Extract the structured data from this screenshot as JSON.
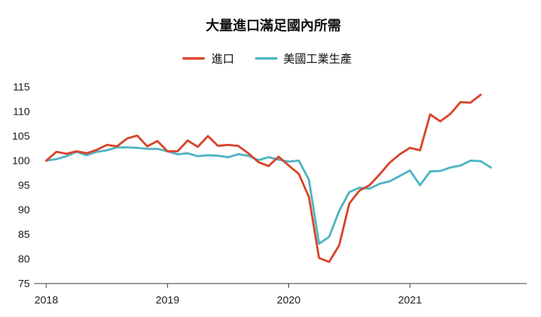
{
  "chart_data": {
    "type": "line",
    "title": "大量進口滿足國內所需",
    "xlabel": "",
    "ylabel": "",
    "x_ticks": [
      "2018",
      "2019",
      "2020",
      "2021"
    ],
    "x_range": [
      "2018-01",
      "2021-12"
    ],
    "ylim": [
      75,
      115
    ],
    "y_ticks": [
      "115",
      "110",
      "105",
      "100",
      "95",
      "90",
      "85",
      "80",
      "75"
    ],
    "grid": false,
    "legend_position": "top-center",
    "series": [
      {
        "name": "進口",
        "color": "#d9452b",
        "points": [
          {
            "x": "2018-01",
            "y": 100.0
          },
          {
            "x": "2018-02",
            "y": 101.8
          },
          {
            "x": "2018-03",
            "y": 101.4
          },
          {
            "x": "2018-04",
            "y": 101.9
          },
          {
            "x": "2018-05",
            "y": 101.5
          },
          {
            "x": "2018-06",
            "y": 102.2
          },
          {
            "x": "2018-07",
            "y": 103.2
          },
          {
            "x": "2018-08",
            "y": 102.9
          },
          {
            "x": "2018-09",
            "y": 104.5
          },
          {
            "x": "2018-10",
            "y": 105.1
          },
          {
            "x": "2018-11",
            "y": 102.9
          },
          {
            "x": "2018-12",
            "y": 104.0
          },
          {
            "x": "2019-01",
            "y": 101.9
          },
          {
            "x": "2019-02",
            "y": 101.9
          },
          {
            "x": "2019-03",
            "y": 104.1
          },
          {
            "x": "2019-04",
            "y": 102.8
          },
          {
            "x": "2019-05",
            "y": 105.0
          },
          {
            "x": "2019-06",
            "y": 103.0
          },
          {
            "x": "2019-07",
            "y": 103.2
          },
          {
            "x": "2019-08",
            "y": 103.0
          },
          {
            "x": "2019-09",
            "y": 101.5
          },
          {
            "x": "2019-10",
            "y": 99.7
          },
          {
            "x": "2019-11",
            "y": 98.9
          },
          {
            "x": "2019-12",
            "y": 100.8
          },
          {
            "x": "2020-01",
            "y": 99.0
          },
          {
            "x": "2020-02",
            "y": 97.3
          },
          {
            "x": "2020-03",
            "y": 92.6
          },
          {
            "x": "2020-04",
            "y": 80.2
          },
          {
            "x": "2020-05",
            "y": 79.4
          },
          {
            "x": "2020-06",
            "y": 82.8
          },
          {
            "x": "2020-07",
            "y": 91.3
          },
          {
            "x": "2020-08",
            "y": 93.9
          },
          {
            "x": "2020-09",
            "y": 95.0
          },
          {
            "x": "2020-10",
            "y": 97.2
          },
          {
            "x": "2020-11",
            "y": 99.6
          },
          {
            "x": "2020-12",
            "y": 101.3
          },
          {
            "x": "2021-01",
            "y": 102.6
          },
          {
            "x": "2021-02",
            "y": 102.1
          },
          {
            "x": "2021-03",
            "y": 109.4
          },
          {
            "x": "2021-04",
            "y": 108.0
          },
          {
            "x": "2021-05",
            "y": 109.5
          },
          {
            "x": "2021-06",
            "y": 111.9
          },
          {
            "x": "2021-07",
            "y": 111.8
          },
          {
            "x": "2021-08",
            "y": 113.4
          }
        ]
      },
      {
        "name": "美國工業生產",
        "color": "#4fb4c2",
        "points": [
          {
            "x": "2018-01",
            "y": 100.0
          },
          {
            "x": "2018-02",
            "y": 100.3
          },
          {
            "x": "2018-03",
            "y": 100.9
          },
          {
            "x": "2018-04",
            "y": 101.8
          },
          {
            "x": "2018-05",
            "y": 101.1
          },
          {
            "x": "2018-06",
            "y": 101.8
          },
          {
            "x": "2018-07",
            "y": 102.1
          },
          {
            "x": "2018-08",
            "y": 102.7
          },
          {
            "x": "2018-09",
            "y": 102.7
          },
          {
            "x": "2018-10",
            "y": 102.6
          },
          {
            "x": "2018-11",
            "y": 102.4
          },
          {
            "x": "2018-12",
            "y": 102.4
          },
          {
            "x": "2019-01",
            "y": 101.9
          },
          {
            "x": "2019-02",
            "y": 101.3
          },
          {
            "x": "2019-03",
            "y": 101.5
          },
          {
            "x": "2019-04",
            "y": 100.9
          },
          {
            "x": "2019-05",
            "y": 101.1
          },
          {
            "x": "2019-06",
            "y": 101.0
          },
          {
            "x": "2019-07",
            "y": 100.7
          },
          {
            "x": "2019-08",
            "y": 101.3
          },
          {
            "x": "2019-09",
            "y": 101.0
          },
          {
            "x": "2019-10",
            "y": 100.1
          },
          {
            "x": "2019-11",
            "y": 100.7
          },
          {
            "x": "2019-12",
            "y": 100.2
          },
          {
            "x": "2020-01",
            "y": 99.8
          },
          {
            "x": "2020-02",
            "y": 100.0
          },
          {
            "x": "2020-03",
            "y": 96.1
          },
          {
            "x": "2020-04",
            "y": 83.1
          },
          {
            "x": "2020-05",
            "y": 84.5
          },
          {
            "x": "2020-06",
            "y": 89.8
          },
          {
            "x": "2020-07",
            "y": 93.6
          },
          {
            "x": "2020-08",
            "y": 94.5
          },
          {
            "x": "2020-09",
            "y": 94.3
          },
          {
            "x": "2020-10",
            "y": 95.3
          },
          {
            "x": "2020-11",
            "y": 95.8
          },
          {
            "x": "2020-12",
            "y": 96.9
          },
          {
            "x": "2021-01",
            "y": 98.0
          },
          {
            "x": "2021-02",
            "y": 95.0
          },
          {
            "x": "2021-03",
            "y": 97.8
          },
          {
            "x": "2021-04",
            "y": 97.9
          },
          {
            "x": "2021-05",
            "y": 98.6
          },
          {
            "x": "2021-06",
            "y": 99.0
          },
          {
            "x": "2021-07",
            "y": 100.0
          },
          {
            "x": "2021-08",
            "y": 99.9
          },
          {
            "x": "2021-09",
            "y": 98.6
          }
        ]
      }
    ]
  }
}
